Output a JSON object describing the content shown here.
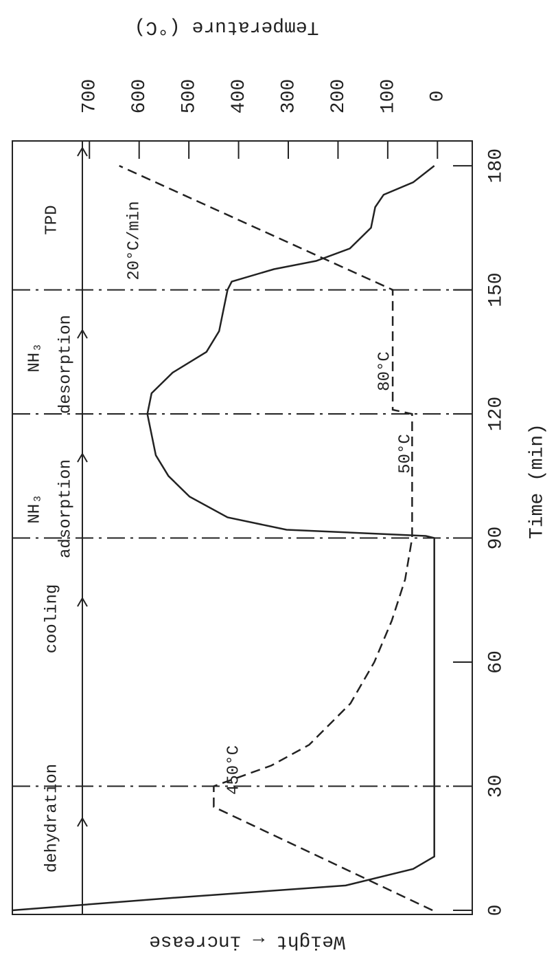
{
  "chart_data": {
    "type": "line",
    "x_label": "Time (min)",
    "y_label": "Temperature (°C)",
    "y2_label": "Weight ← increase",
    "xlim": [
      -1,
      186
    ],
    "xticks": [
      0,
      30,
      60,
      90,
      120,
      150,
      180
    ],
    "ylim": [
      -70,
      855
    ],
    "yticks": [
      0,
      100,
      200,
      300,
      400,
      500,
      600,
      700
    ],
    "y2lim": [
      -9,
      100
    ],
    "phase_lines": [
      30,
      90,
      120,
      150
    ],
    "annotations": [
      "dehydration",
      "cooling",
      "NH₃",
      "adsorption",
      "NH₃",
      "desorption",
      "TPD",
      "450°C",
      "50°C",
      "80°C",
      "20°C/min"
    ],
    "series": [
      {
        "color": "#222222",
        "style": "dashed",
        "x": [
          0,
          25,
          30,
          35,
          40,
          50,
          60,
          70,
          80,
          90,
          120,
          121,
          150,
          180
        ],
        "values": [
          10,
          450,
          450,
          334,
          258,
          175,
          127,
          92,
          65,
          51,
          51,
          90,
          90,
          640
        ]
      },
      {
        "color": "#222222",
        "style": "solid",
        "axis": "y2",
        "x": [
          0,
          3,
          6,
          10,
          13,
          14,
          90,
          90.5,
          92,
          95,
          100,
          105,
          110,
          120,
          125,
          130,
          135,
          140,
          145,
          150,
          152,
          155,
          157,
          160,
          165,
          170,
          173,
          176,
          180
        ],
        "values": [
          100,
          62,
          21,
          5,
          0,
          0,
          0,
          2,
          35,
          49,
          58,
          63,
          66,
          68,
          67,
          62,
          54,
          51,
          50,
          49,
          48,
          38,
          28,
          20,
          15,
          14,
          12,
          5,
          0
        ]
      }
    ]
  }
}
